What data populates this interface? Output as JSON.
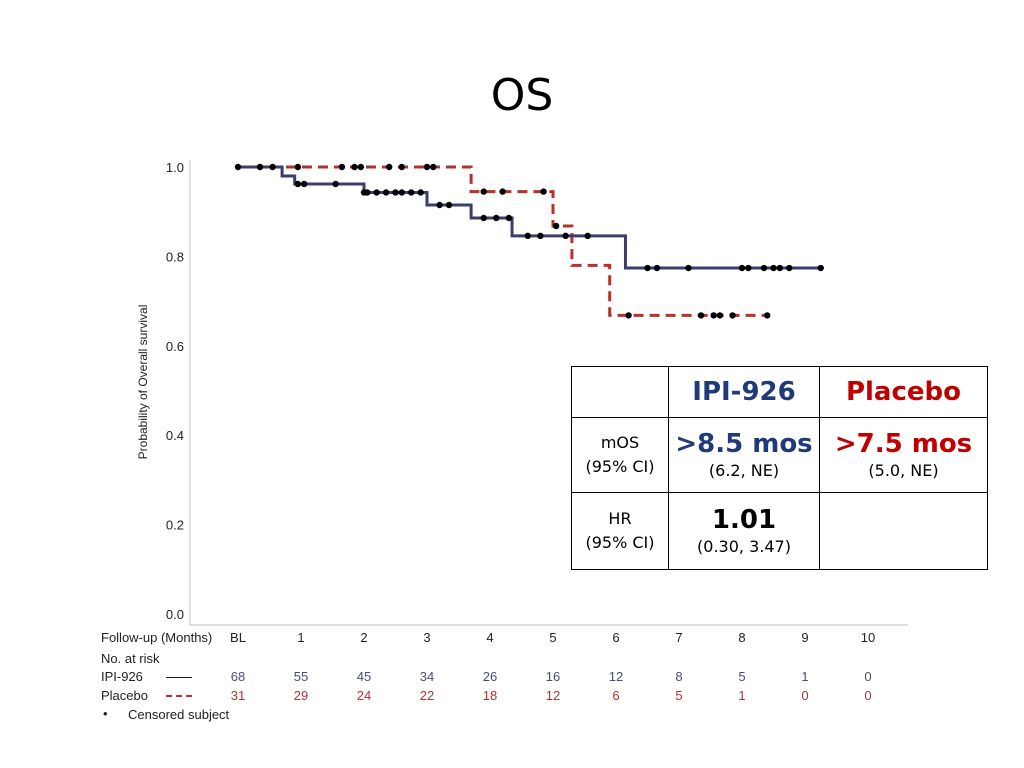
{
  "title": "OS",
  "colors": {
    "ipi": "#3a3d6e",
    "placebo": "#b7312c",
    "ipi_text": "#1f3a78",
    "placebo_text": "#c00000"
  },
  "chart_data": {
    "type": "line",
    "step": true,
    "ylabel": "Probability of Overall survival",
    "ylim": [
      0.0,
      1.0
    ],
    "yticks": [
      "0.0",
      "0.2",
      "0.4",
      "0.6",
      "0.8",
      "1.0"
    ],
    "xlim": [
      0,
      10
    ],
    "xlabel": "Follow-up (Months)",
    "xticks": [
      "BL",
      "1",
      "2",
      "3",
      "4",
      "5",
      "6",
      "7",
      "8",
      "9",
      "10"
    ],
    "grid": false,
    "series": [
      {
        "name": "IPI-926",
        "style": "solid",
        "steps": [
          [
            0,
            1.0
          ],
          [
            0.7,
            0.98
          ],
          [
            0.9,
            0.962
          ],
          [
            2.0,
            0.943
          ],
          [
            3.0,
            0.915
          ],
          [
            3.7,
            0.886
          ],
          [
            4.35,
            0.846
          ],
          [
            6.15,
            0.774
          ],
          [
            9.25,
            0.774
          ]
        ],
        "censored": [
          [
            0.0,
            1.0
          ],
          [
            0.35,
            1.0
          ],
          [
            0.55,
            1.0
          ],
          [
            0.95,
            0.962
          ],
          [
            1.05,
            0.962
          ],
          [
            1.55,
            0.962
          ],
          [
            2.0,
            0.943
          ],
          [
            2.05,
            0.943
          ],
          [
            2.2,
            0.943
          ],
          [
            2.35,
            0.943
          ],
          [
            2.5,
            0.943
          ],
          [
            2.6,
            0.943
          ],
          [
            2.75,
            0.943
          ],
          [
            2.9,
            0.943
          ],
          [
            3.2,
            0.915
          ],
          [
            3.35,
            0.915
          ],
          [
            3.9,
            0.886
          ],
          [
            4.1,
            0.886
          ],
          [
            4.3,
            0.886
          ],
          [
            4.6,
            0.846
          ],
          [
            4.8,
            0.846
          ],
          [
            5.2,
            0.846
          ],
          [
            5.55,
            0.846
          ],
          [
            6.5,
            0.774
          ],
          [
            6.65,
            0.774
          ],
          [
            7.15,
            0.774
          ],
          [
            8.0,
            0.774
          ],
          [
            8.1,
            0.774
          ],
          [
            8.35,
            0.774
          ],
          [
            8.5,
            0.774
          ],
          [
            8.6,
            0.774
          ],
          [
            8.75,
            0.774
          ],
          [
            9.25,
            0.774
          ]
        ]
      },
      {
        "name": "Placebo",
        "style": "dashed",
        "steps": [
          [
            0,
            1.0
          ],
          [
            3.7,
            0.945
          ],
          [
            5.0,
            0.868
          ],
          [
            5.3,
            0.78
          ],
          [
            5.9,
            0.668
          ],
          [
            8.4,
            0.668
          ]
        ],
        "censored": [
          [
            0.95,
            1.0
          ],
          [
            1.65,
            1.0
          ],
          [
            1.85,
            1.0
          ],
          [
            1.95,
            1.0
          ],
          [
            2.4,
            1.0
          ],
          [
            2.6,
            1.0
          ],
          [
            3.0,
            1.0
          ],
          [
            3.1,
            1.0
          ],
          [
            3.9,
            0.945
          ],
          [
            4.2,
            0.945
          ],
          [
            4.85,
            0.945
          ],
          [
            5.05,
            0.868
          ],
          [
            6.2,
            0.668
          ],
          [
            7.35,
            0.668
          ],
          [
            7.55,
            0.668
          ],
          [
            7.65,
            0.668
          ],
          [
            7.85,
            0.668
          ],
          [
            8.4,
            0.668
          ]
        ]
      }
    ]
  },
  "risk_table": {
    "header": "No. at risk",
    "rows": [
      {
        "label": "IPI-926",
        "values": [
          "68",
          "55",
          "45",
          "34",
          "26",
          "16",
          "12",
          "8",
          "5",
          "1",
          "0"
        ]
      },
      {
        "label": "Placebo",
        "values": [
          "31",
          "29",
          "24",
          "22",
          "18",
          "12",
          "6",
          "5",
          "1",
          "0",
          "0"
        ]
      }
    ],
    "censor_note": "Censored subject",
    "censor_bullet": "•"
  },
  "stats_table": {
    "headers": [
      "",
      "IPI-926",
      "Placebo"
    ],
    "mos_label": [
      "mOS",
      "(95% CI)"
    ],
    "mos_ipi": ">8.5 mos",
    "mos_ipi_ci": "(6.2, NE)",
    "mos_placebo": ">7.5 mos",
    "mos_placebo_ci": "(5.0, NE)",
    "hr_label": [
      "HR",
      "(95% CI)"
    ],
    "hr_value": "1.01",
    "hr_ci": "(0.30, 3.47)"
  }
}
